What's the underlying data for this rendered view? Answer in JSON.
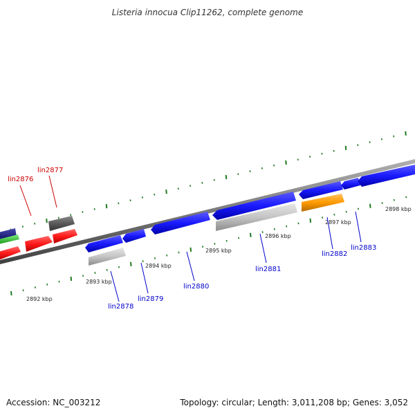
{
  "title": "Listeria innocua Clip11262, complete genome",
  "accession": "Accession: NC_003212",
  "topology": "Topology: circular; Length: 3,011,208 bp; Genes: 3,052",
  "colors": {
    "label_red": "#cc0000",
    "label_blue": "#0000cc",
    "blue": "#1a1aff",
    "red": "#ff1a1a",
    "grey_light": "#bdbdbd",
    "grey_dark": "#5a5a5a",
    "orange": "#ff9900",
    "navy": "#1a1a8c",
    "green": "#33cc33",
    "tick": "#1f7a1f",
    "backbone": "#808080"
  },
  "kbp_labels": [
    "2892 kbp",
    "2893 kbp",
    "2894 kbp",
    "2895 kbp",
    "2896 kbp",
    "2897 kbp",
    "2898 kbp"
  ],
  "gene_labels": [
    {
      "name": "lin2876",
      "color": "red"
    },
    {
      "name": "lin2877",
      "color": "red"
    },
    {
      "name": "lin2878",
      "color": "blue"
    },
    {
      "name": "lin2879",
      "color": "blue"
    },
    {
      "name": "lin2880",
      "color": "blue"
    },
    {
      "name": "lin2881",
      "color": "blue"
    },
    {
      "name": "lin2882",
      "color": "blue"
    },
    {
      "name": "lin2883",
      "color": "blue"
    }
  ]
}
